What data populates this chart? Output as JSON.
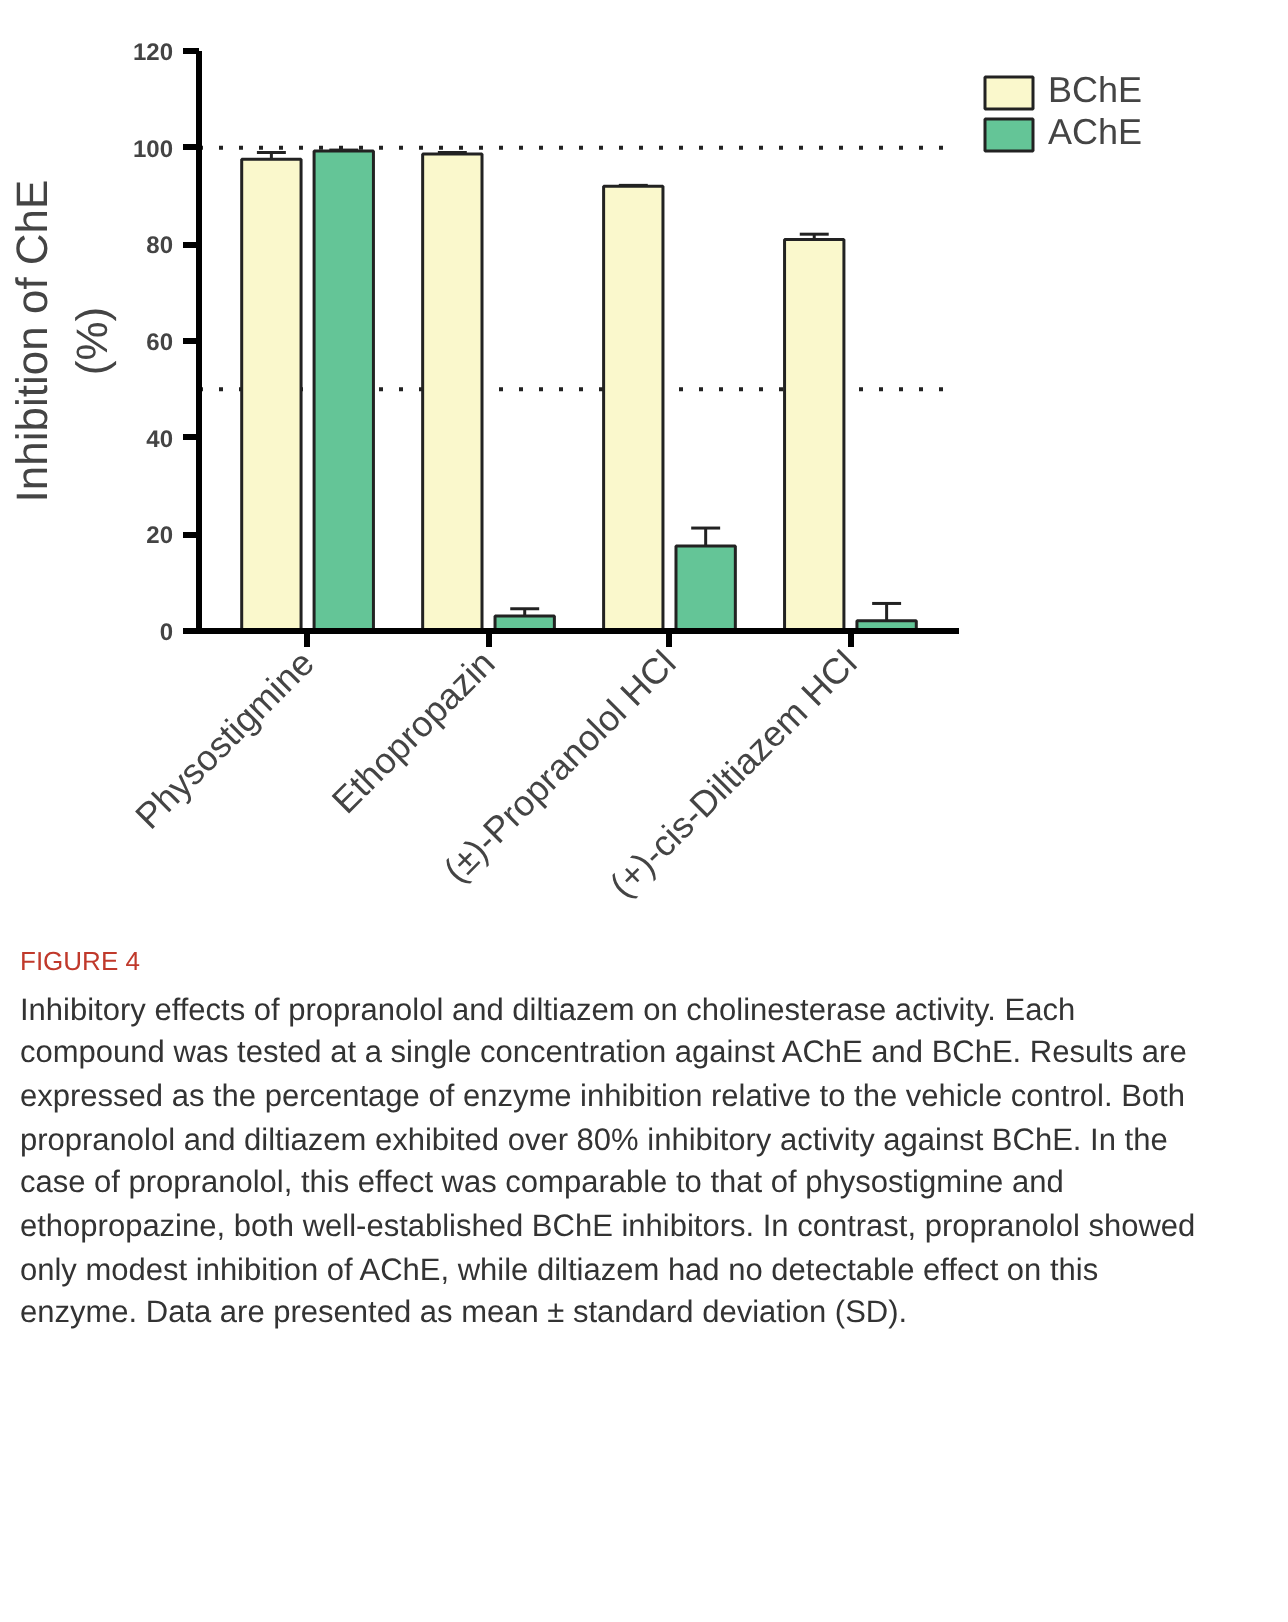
{
  "chart_data": {
    "type": "bar",
    "ylabel": "Inhibition of ChE\n(%)",
    "categories": [
      "Physostigmine",
      "Ethopropazin",
      "(±)-Propranolol HCl",
      "(+)-cis-Diltiazem HCl"
    ],
    "series": [
      {
        "name": "BChE",
        "color": "#faf8cc",
        "values": [
          97.6,
          98.7,
          92.0,
          81.0
        ],
        "errors": [
          [
            97.6,
            99.0
          ],
          [
            98.7,
            99.0
          ],
          [
            92.0,
            92.2
          ],
          [
            81.0,
            82.1
          ]
        ]
      },
      {
        "name": "AChE",
        "color": "#64c597",
        "values": [
          99.3,
          3.1,
          17.6,
          2.1
        ],
        "errors": [
          [
            99.3,
            99.5
          ],
          [
            3.1,
            4.6
          ],
          [
            17.6,
            21.3
          ],
          [
            2.1,
            5.7
          ]
        ]
      }
    ],
    "ylim": [
      0,
      120
    ],
    "yticks": [
      0,
      20,
      40,
      60,
      80,
      100,
      120
    ],
    "grid": false,
    "legend": "top right",
    "ref_lines": [
      {
        "axis": "y",
        "value": 100,
        "line_style": "dotted"
      },
      {
        "axis": "y",
        "value": 50,
        "line_style": "dotted"
      }
    ],
    "annotations": [
      "FIGURE 4",
      "Inhibitory effects of propranolol and diltiazem on cholinesterase activity. Each compound was tested at a single concentration against AChE and BChE. Results are expressed as the percentage of enzyme inhibition relative to the vehicle control. Both propranolol and diltiazem exhibited over 80% inhibitory activity against BChE. In the case of propranolol, this effect was comparable to that of physostigmine and ethopropazine, both well-established BChE inhibitors. In contrast, propranolol showed only modest inhibition of AChE, while diltiazem had no detectable effect on this enzyme. Data are presented as mean ± standard deviation (SD)."
    ]
  }
}
